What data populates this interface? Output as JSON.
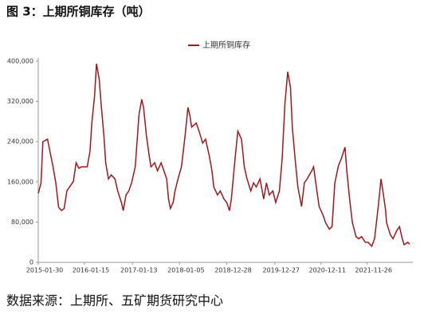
{
  "chart_data": {
    "type": "line",
    "title": "图 3：上期所铜库存（吨）",
    "source": "数据来源：上期所、五矿期货研究中心",
    "x": [
      "2015-01-30",
      "2015-02-20",
      "2015-03-06",
      "2015-04-10",
      "2015-05-22",
      "2015-06-12",
      "2015-07-03",
      "2015-07-24",
      "2015-08-14",
      "2015-09-04",
      "2015-10-23",
      "2015-11-13",
      "2015-12-04",
      "2015-12-25",
      "2016-02-05",
      "2016-02-26",
      "2016-03-11",
      "2016-04-01",
      "2016-04-15",
      "2016-05-06",
      "2016-05-20",
      "2016-06-10",
      "2016-06-24",
      "2016-07-15",
      "2016-08-05",
      "2016-09-02",
      "2016-09-23",
      "2016-10-21",
      "2016-11-04",
      "2016-11-25",
      "2016-12-16",
      "2017-01-06",
      "2017-02-03",
      "2017-03-03",
      "2017-03-24",
      "2017-04-07",
      "2017-04-28",
      "2017-05-19",
      "2017-06-02",
      "2017-06-30",
      "2017-07-21",
      "2017-08-18",
      "2017-09-08",
      "2017-09-29",
      "2017-10-13",
      "2017-10-27",
      "2017-11-17",
      "2017-12-01",
      "2017-12-29",
      "2018-01-19",
      "2018-02-16",
      "2018-03-09",
      "2018-03-23",
      "2018-04-06",
      "2018-05-11",
      "2018-06-01",
      "2018-06-29",
      "2018-07-20",
      "2018-08-17",
      "2018-09-07",
      "2018-09-21",
      "2018-10-19",
      "2018-11-09",
      "2018-12-07",
      "2018-12-28",
      "2019-01-18",
      "2019-02-01",
      "2019-03-01",
      "2019-03-22",
      "2019-04-19",
      "2019-05-10",
      "2019-05-31",
      "2019-06-28",
      "2019-07-19",
      "2019-08-09",
      "2019-09-06",
      "2019-10-04",
      "2019-10-25",
      "2019-11-15",
      "2019-12-13",
      "2020-01-03",
      "2020-01-31",
      "2020-02-21",
      "2020-03-13",
      "2020-04-03",
      "2020-04-24",
      "2020-05-08",
      "2020-05-29",
      "2020-06-19",
      "2020-07-17",
      "2020-08-07",
      "2020-08-28",
      "2020-10-02",
      "2020-10-16",
      "2020-11-06",
      "2020-11-27",
      "2020-12-25",
      "2021-01-15",
      "2021-02-12",
      "2021-03-05",
      "2021-03-26",
      "2021-04-23",
      "2021-05-14",
      "2021-06-11",
      "2021-06-25",
      "2021-07-16",
      "2021-08-06",
      "2021-09-03",
      "2021-09-24",
      "2021-10-15",
      "2021-11-12",
      "2021-12-03",
      "2021-12-31",
      "2022-01-21",
      "2022-02-18",
      "2022-03-11",
      "2022-03-25",
      "2022-04-15",
      "2022-04-22",
      "2022-05-20",
      "2022-06-10",
      "2022-07-08",
      "2022-07-29",
      "2022-08-19",
      "2022-09-02",
      "2022-09-30",
      "2022-10-14"
    ],
    "series": [
      {
        "name": "上期所铜库存",
        "color": "#a3161c",
        "values": [
          137000,
          158000,
          240000,
          245000,
          190000,
          158000,
          110000,
          103000,
          107000,
          142000,
          161000,
          198000,
          187000,
          190000,
          190000,
          221000,
          277000,
          332000,
          395000,
          364000,
          316000,
          253000,
          198000,
          166000,
          174000,
          166000,
          142000,
          119000,
          103000,
          134000,
          142000,
          158000,
          190000,
          293000,
          324000,
          308000,
          253000,
          213000,
          190000,
          198000,
          182000,
          198000,
          182000,
          166000,
          126000,
          107000,
          119000,
          142000,
          171000,
          190000,
          253000,
          308000,
          293000,
          269000,
          277000,
          261000,
          237000,
          245000,
          213000,
          182000,
          150000,
          134000,
          142000,
          126000,
          119000,
          103000,
          126000,
          206000,
          261000,
          245000,
          190000,
          166000,
          142000,
          158000,
          150000,
          166000,
          126000,
          158000,
          134000,
          142000,
          119000,
          142000,
          206000,
          316000,
          379000,
          348000,
          269000,
          206000,
          150000,
          111000,
          158000,
          166000,
          182000,
          190000,
          150000,
          111000,
          95000,
          79000,
          66000,
          71000,
          158000,
          193000,
          206000,
          229000,
          182000,
          126000,
          79000,
          51000,
          47000,
          51000,
          40000,
          40000,
          32000,
          47000,
          111000,
          166000,
          142000,
          103000,
          79000,
          55000,
          47000,
          63000,
          71000,
          47000,
          35000,
          40000,
          36000
        ]
      }
    ],
    "xlim": [
      "2015-01-30",
      "2022-10-14"
    ],
    "xticks": [
      "2015-01-30",
      "2016-01-15",
      "2017-01-13",
      "2018-01-05",
      "2018-12-28",
      "2019-12-27",
      "2020-12-11",
      "2021-11-26"
    ],
    "ylim": [
      0,
      400000
    ],
    "yticks": [
      0,
      {
        "value": 80000,
        "label": "80,000"
      },
      {
        "value": 160000,
        "label": "160,000"
      },
      {
        "value": 240000,
        "label": "240,000"
      },
      {
        "value": 320000,
        "label": "320,000"
      },
      {
        "value": 400000,
        "label": "400,000"
      }
    ],
    "grid": false,
    "legend": "top"
  }
}
